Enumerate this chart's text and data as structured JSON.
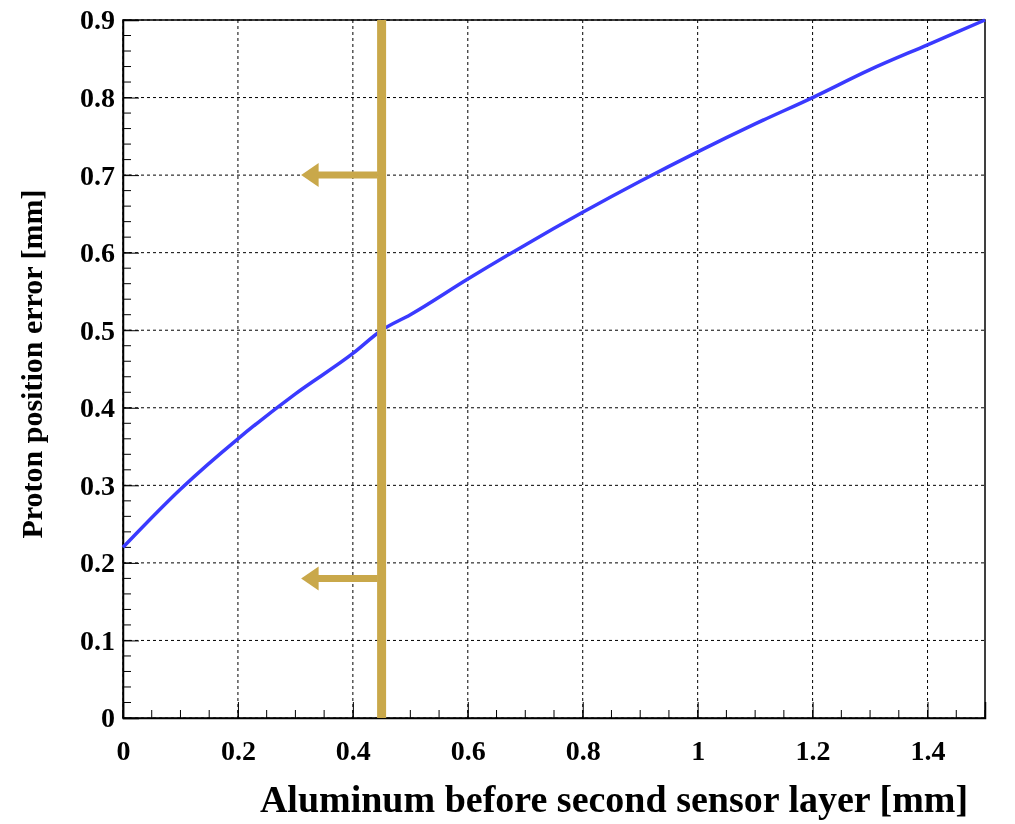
{
  "chart_data": {
    "type": "line",
    "xlabel": "Aluminum before second sensor layer [mm]",
    "ylabel": "Proton position error [mm]",
    "x": [
      0,
      0.1,
      0.2,
      0.3,
      0.4,
      0.45,
      0.5,
      0.6,
      0.7,
      0.8,
      0.9,
      1.0,
      1.1,
      1.2,
      1.3,
      1.4,
      1.5
    ],
    "series": [
      {
        "color": "#3a3aff",
        "values": [
          0.22,
          0.295,
          0.36,
          0.418,
          0.47,
          0.5,
          0.52,
          0.566,
          0.61,
          0.652,
          0.692,
          0.73,
          0.766,
          0.8,
          0.836,
          0.868,
          0.9
        ]
      }
    ],
    "xlim": [
      0,
      1.5
    ],
    "xticks": [
      0,
      0.2,
      0.4,
      0.6,
      0.8,
      1,
      1.2,
      1.4
    ],
    "ylim": [
      0,
      0.9
    ],
    "yticks": [
      0,
      0.1,
      0.2,
      0.3,
      0.4,
      0.5,
      0.6,
      0.7,
      0.8,
      0.9
    ],
    "grid": true,
    "marker": "none",
    "line_style": "solid",
    "ref_lines": [
      {
        "axis": "x",
        "value": 0.45,
        "color": "#c9a84a"
      }
    ]
  }
}
